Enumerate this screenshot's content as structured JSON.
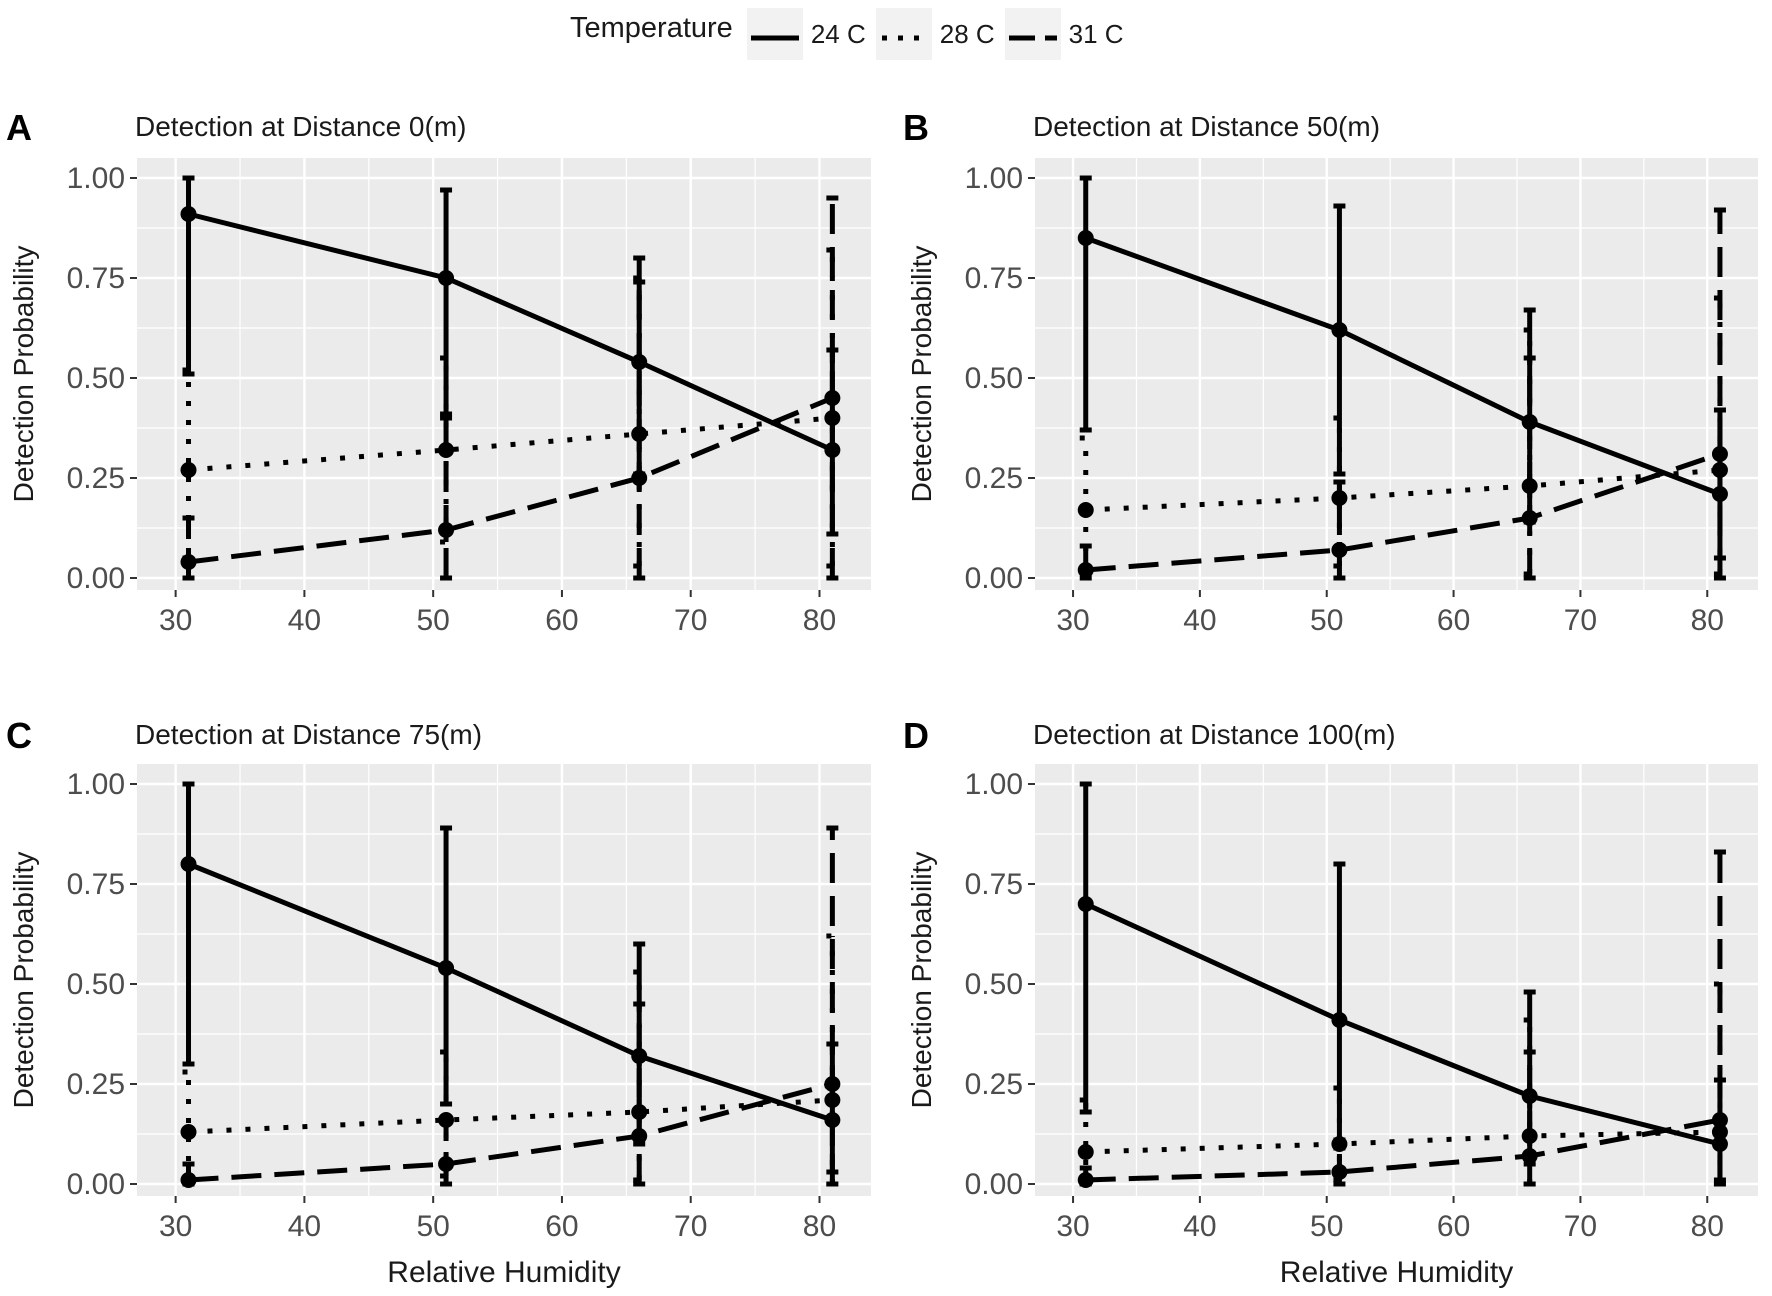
{
  "legend": {
    "title": "Temperature",
    "items": [
      {
        "label": "24 C",
        "style": "solid"
      },
      {
        "label": "28 C",
        "style": "dotted"
      },
      {
        "label": "31 C",
        "style": "dashed"
      }
    ]
  },
  "colors": {
    "panel_bg": "#ebebeb",
    "grid": "#ffffff",
    "line": "#000000",
    "text": "#1a1a1a",
    "tick_text": "#4d4d4d"
  },
  "chart_data": [
    {
      "type": "line",
      "panel_tag": "A",
      "title": "Detection at Distance 0(m)",
      "xlabel": "",
      "ylabel": "Detection Probability",
      "xlim": [
        27,
        84
      ],
      "ylim": [
        -0.03,
        1.05
      ],
      "x_ticks": [
        30,
        40,
        50,
        60,
        70,
        80
      ],
      "y_ticks": [
        "0.00",
        "0.25",
        "0.50",
        "0.75",
        "1.00"
      ],
      "x": [
        31,
        51,
        66,
        81
      ],
      "series": [
        {
          "name": "24 C",
          "style": "solid",
          "values": [
            0.91,
            0.75,
            0.54,
            0.32
          ],
          "lower": [
            0.51,
            0.4,
            0.26,
            0.11
          ],
          "upper": [
            1.0,
            0.97,
            0.8,
            0.57
          ]
        },
        {
          "name": "28 C",
          "style": "dotted",
          "values": [
            0.27,
            0.32,
            0.36,
            0.4
          ],
          "lower": [
            0.05,
            0.09,
            0.03,
            0.03
          ],
          "upper": [
            0.52,
            0.55,
            0.75,
            0.82
          ]
        },
        {
          "name": "31 C",
          "style": "dashed",
          "values": [
            0.04,
            0.12,
            0.25,
            0.45
          ],
          "lower": [
            0.0,
            0.0,
            0.0,
            0.0
          ],
          "upper": [
            0.15,
            0.41,
            0.74,
            0.95
          ]
        }
      ]
    },
    {
      "type": "line",
      "panel_tag": "B",
      "title": "Detection at Distance 50(m)",
      "xlabel": "",
      "ylabel": "Detection Probability",
      "xlim": [
        27,
        84
      ],
      "ylim": [
        -0.03,
        1.05
      ],
      "x_ticks": [
        30,
        40,
        50,
        60,
        70,
        80
      ],
      "y_ticks": [
        "0.00",
        "0.25",
        "0.50",
        "0.75",
        "1.00"
      ],
      "x": [
        31,
        51,
        66,
        81
      ],
      "series": [
        {
          "name": "24 C",
          "style": "solid",
          "values": [
            0.85,
            0.62,
            0.39,
            0.21
          ],
          "lower": [
            0.37,
            0.26,
            0.14,
            0.05
          ],
          "upper": [
            1.0,
            0.93,
            0.67,
            0.42
          ]
        },
        {
          "name": "28 C",
          "style": "dotted",
          "values": [
            0.17,
            0.2,
            0.23,
            0.27
          ],
          "lower": [
            0.02,
            0.03,
            0.01,
            0.01
          ],
          "upper": [
            0.35,
            0.4,
            0.62,
            0.7
          ]
        },
        {
          "name": "31 C",
          "style": "dashed",
          "values": [
            0.02,
            0.07,
            0.15,
            0.31
          ],
          "lower": [
            0.0,
            0.0,
            0.0,
            0.0
          ],
          "upper": [
            0.08,
            0.24,
            0.55,
            0.92
          ]
        }
      ]
    },
    {
      "type": "line",
      "panel_tag": "C",
      "title": "Detection at Distance 75(m)",
      "xlabel": "Relative Humidity",
      "ylabel": "Detection Probability",
      "xlim": [
        27,
        84
      ],
      "ylim": [
        -0.03,
        1.05
      ],
      "x_ticks": [
        30,
        40,
        50,
        60,
        70,
        80
      ],
      "y_ticks": [
        "0.00",
        "0.25",
        "0.50",
        "0.75",
        "1.00"
      ],
      "x": [
        31,
        51,
        66,
        81
      ],
      "series": [
        {
          "name": "24 C",
          "style": "solid",
          "values": [
            0.8,
            0.54,
            0.32,
            0.16
          ],
          "lower": [
            0.3,
            0.2,
            0.1,
            0.03
          ],
          "upper": [
            1.0,
            0.89,
            0.6,
            0.35
          ]
        },
        {
          "name": "28 C",
          "style": "dotted",
          "values": [
            0.13,
            0.16,
            0.18,
            0.21
          ],
          "lower": [
            0.01,
            0.02,
            0.01,
            0.0
          ],
          "upper": [
            0.28,
            0.33,
            0.53,
            0.62
          ]
        },
        {
          "name": "31 C",
          "style": "dashed",
          "values": [
            0.01,
            0.05,
            0.12,
            0.25
          ],
          "lower": [
            0.0,
            0.0,
            0.0,
            0.0
          ],
          "upper": [
            0.05,
            0.16,
            0.45,
            0.89
          ]
        }
      ]
    },
    {
      "type": "line",
      "panel_tag": "D",
      "title": "Detection at Distance 100(m)",
      "xlabel": "Relative Humidity",
      "ylabel": "Detection Probability",
      "xlim": [
        27,
        84
      ],
      "ylim": [
        -0.03,
        1.05
      ],
      "x_ticks": [
        30,
        40,
        50,
        60,
        70,
        80
      ],
      "y_ticks": [
        "0.00",
        "0.25",
        "0.50",
        "0.75",
        "1.00"
      ],
      "x": [
        31,
        51,
        66,
        81
      ],
      "series": [
        {
          "name": "24 C",
          "style": "solid",
          "values": [
            0.7,
            0.41,
            0.22,
            0.1
          ],
          "lower": [
            0.18,
            0.09,
            0.05,
            0.01
          ],
          "upper": [
            1.0,
            0.8,
            0.48,
            0.26
          ]
        },
        {
          "name": "28 C",
          "style": "dotted",
          "values": [
            0.08,
            0.1,
            0.12,
            0.13
          ],
          "lower": [
            0.0,
            0.01,
            0.0,
            0.0
          ],
          "upper": [
            0.21,
            0.24,
            0.41,
            0.5
          ]
        },
        {
          "name": "31 C",
          "style": "dashed",
          "values": [
            0.01,
            0.03,
            0.07,
            0.16
          ],
          "lower": [
            0.0,
            0.0,
            0.0,
            0.0
          ],
          "upper": [
            0.04,
            0.11,
            0.33,
            0.83
          ]
        }
      ]
    }
  ]
}
